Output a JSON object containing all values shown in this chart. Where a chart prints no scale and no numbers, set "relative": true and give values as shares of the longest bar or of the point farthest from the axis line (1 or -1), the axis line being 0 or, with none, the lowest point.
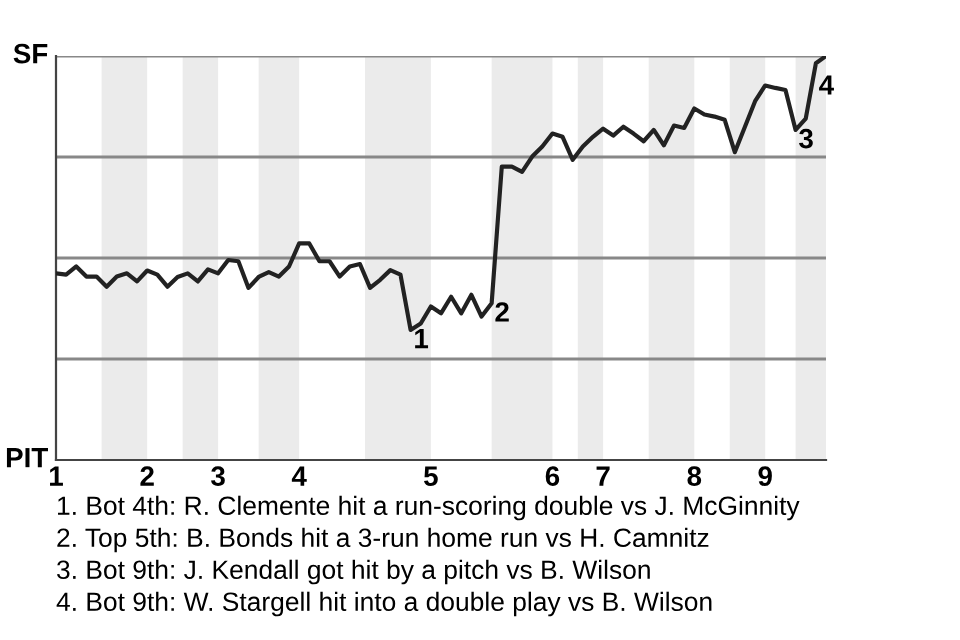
{
  "chart_data": {
    "type": "line",
    "relative": true,
    "categories": [
      "1",
      null,
      null,
      null,
      null,
      null,
      null,
      null,
      null,
      "2",
      null,
      null,
      null,
      null,
      null,
      null,
      "3",
      null,
      null,
      null,
      null,
      null,
      null,
      null,
      "4",
      null,
      null,
      null,
      null,
      null,
      null,
      null,
      null,
      null,
      null,
      null,
      null,
      "5",
      null,
      null,
      null,
      null,
      null,
      null,
      null,
      null,
      null,
      null,
      null,
      "6",
      null,
      null,
      null,
      null,
      "7",
      null,
      null,
      null,
      null,
      null,
      null,
      null,
      null,
      "8",
      null,
      null,
      null,
      null,
      null,
      null,
      "9",
      null,
      null,
      null,
      null,
      null,
      null
    ],
    "series": [
      {
        "color": "#222222",
        "values": [
          0.462,
          0.459,
          0.479,
          0.454,
          0.454,
          0.429,
          0.454,
          0.462,
          0.442,
          0.469,
          0.459,
          0.429,
          0.453,
          0.462,
          0.442,
          0.472,
          0.462,
          0.495,
          0.492,
          0.426,
          0.453,
          0.465,
          0.454,
          0.479,
          0.536,
          0.536,
          0.492,
          0.492,
          0.454,
          0.479,
          0.485,
          0.426,
          0.446,
          0.47,
          0.459,
          0.322,
          0.338,
          0.38,
          0.363,
          0.404,
          0.363,
          0.409,
          0.355,
          0.388,
          0.726,
          0.726,
          0.713,
          0.751,
          0.776,
          0.808,
          0.8,
          0.743,
          0.776,
          0.8,
          0.82,
          0.803,
          0.825,
          0.808,
          0.789,
          0.817,
          0.779,
          0.828,
          0.822,
          0.87,
          0.855,
          0.85,
          0.842,
          0.762,
          0.825,
          0.888,
          0.927,
          0.921,
          0.916,
          0.817,
          0.845,
          0.982,
          1
        ]
      }
    ],
    "annotations": [
      "SF",
      "PIT",
      {
        "text": "1",
        "y": 0.322
      },
      {
        "text": "2",
        "y": 0.388
      },
      {
        "text": "3",
        "y": 0.817
      },
      {
        "text": "4",
        "y": 0.982
      },
      "1. Bot 4th: R. Clemente hit a run-scoring double vs J. McGinnity",
      "2. Top 5th: B. Bonds hit a 3-run home run vs H. Camnitz",
      "3. Bot 9th: J. Kendall got hit by a pitch vs B. Wilson",
      "4. Bot 9th: W. Stargell hit into a double play vs B. Wilson"
    ]
  }
}
